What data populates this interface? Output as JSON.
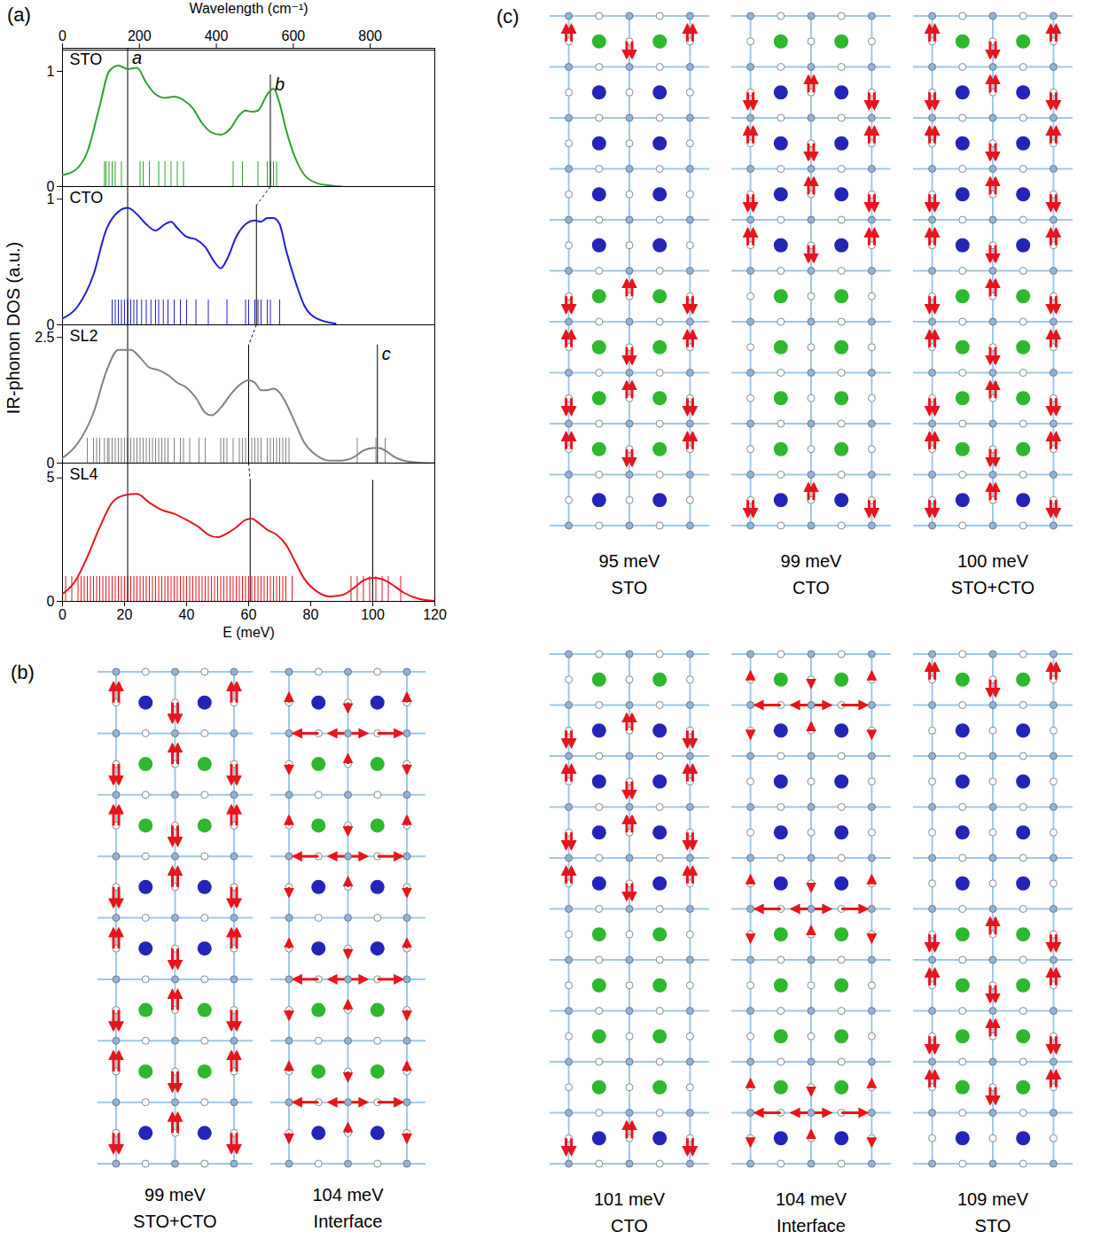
{
  "panel_a": {
    "label": "(a)",
    "y_label": "IR-phonon DOS (a.u.)"
  },
  "chart_data": [
    {
      "type": "line",
      "title": "STO",
      "color": "#2ca02c",
      "xlim": [
        0,
        120
      ],
      "ylim": [
        0,
        1.2
      ],
      "yticks": [
        0,
        1
      ],
      "tick_labels": "y",
      "x2lim": [
        0,
        968
      ],
      "x2ticks": [
        0,
        200,
        400,
        600,
        800
      ],
      "x2_label": "Wavelength (cm⁻¹)",
      "x": [
        0,
        4,
        8,
        12,
        15,
        18,
        21,
        24,
        27,
        30,
        33,
        36,
        39,
        42,
        45,
        48,
        51,
        54,
        57,
        59,
        61,
        63,
        66,
        68,
        70,
        72,
        75,
        78,
        82,
        86,
        90
      ],
      "values": [
        0.1,
        0.14,
        0.3,
        0.7,
        1.0,
        1.05,
        1.02,
        1.03,
        0.9,
        0.8,
        0.77,
        0.78,
        0.75,
        0.68,
        0.55,
        0.47,
        0.45,
        0.5,
        0.62,
        0.66,
        0.65,
        0.66,
        0.8,
        0.85,
        0.72,
        0.5,
        0.25,
        0.1,
        0.03,
        0.01,
        0
      ],
      "sticks": [
        13.5,
        14,
        15,
        16,
        17,
        19,
        25,
        26,
        28,
        31,
        33,
        35,
        37,
        39,
        55,
        58,
        63,
        66,
        67,
        68,
        69
      ],
      "vlines": [
        {
          "x": 21,
          "y_top": 1.2,
          "label": "a"
        },
        {
          "x": 67,
          "y_top": 0.97,
          "label": "b"
        }
      ]
    },
    {
      "type": "line",
      "title": "CTO",
      "color": "#1f1fd0",
      "xlim": [
        0,
        120
      ],
      "ylim": [
        0,
        1.1
      ],
      "yticks": [
        0,
        1
      ],
      "tick_labels": "y",
      "x": [
        0,
        5,
        10,
        14,
        18,
        21,
        24,
        27,
        30,
        33,
        35,
        37,
        40,
        43,
        46,
        49,
        51,
        53,
        56,
        59,
        62,
        64,
        66,
        68,
        70,
        72,
        75,
        78,
        82,
        88
      ],
      "values": [
        0.05,
        0.15,
        0.4,
        0.75,
        0.9,
        0.93,
        0.88,
        0.8,
        0.75,
        0.8,
        0.82,
        0.77,
        0.7,
        0.68,
        0.62,
        0.5,
        0.45,
        0.52,
        0.7,
        0.8,
        0.83,
        0.82,
        0.85,
        0.85,
        0.8,
        0.6,
        0.35,
        0.15,
        0.05,
        0.01
      ],
      "sticks": [
        16,
        17,
        18,
        19,
        20,
        21,
        22,
        23,
        24,
        25.5,
        27,
        28.5,
        30,
        31,
        32.5,
        34,
        36,
        38,
        40,
        43,
        47,
        53,
        59,
        60,
        62,
        63,
        64,
        66,
        67,
        70
      ],
      "vlines": [
        {
          "x": 21,
          "y_top": 1.1
        },
        {
          "x": 62.5,
          "y_top": 0.95
        }
      ]
    },
    {
      "type": "line",
      "title": "SL2",
      "color": "#808080",
      "xlim": [
        0,
        120
      ],
      "ylim": [
        0,
        2.75
      ],
      "yticks": [
        0,
        2.5
      ],
      "tick_labels": "y",
      "x": [
        0,
        5,
        10,
        14,
        18,
        22,
        25,
        28,
        31,
        34,
        37,
        40,
        43,
        46,
        48,
        51,
        54,
        57,
        60,
        62,
        64,
        66,
        68,
        70,
        72,
        75,
        78,
        82,
        86,
        90,
        94,
        97,
        100,
        102,
        104,
        107,
        110,
        115,
        120
      ],
      "values": [
        0.1,
        0.4,
        1.0,
        1.8,
        2.25,
        2.25,
        2.1,
        1.9,
        1.85,
        1.75,
        1.6,
        1.5,
        1.3,
        1.0,
        0.95,
        1.1,
        1.35,
        1.55,
        1.65,
        1.6,
        1.45,
        1.45,
        1.48,
        1.4,
        1.2,
        0.8,
        0.4,
        0.15,
        0.05,
        0.05,
        0.12,
        0.25,
        0.3,
        0.3,
        0.25,
        0.12,
        0.05,
        0.01,
        0
      ],
      "sticks": [
        8,
        10,
        11,
        12,
        13.5,
        14.5,
        15,
        16,
        17,
        18,
        19,
        20,
        21,
        22,
        23,
        24,
        25,
        26,
        27,
        28,
        29,
        30,
        31,
        32,
        33,
        34,
        36,
        38,
        39,
        41,
        44,
        46,
        51,
        52,
        53,
        55,
        57,
        58,
        59,
        60,
        61,
        62,
        63,
        64,
        66,
        67,
        68,
        69,
        70,
        71,
        72,
        73,
        95,
        101,
        104
      ],
      "vlines": [
        {
          "x": 21,
          "y_top": 2.75
        },
        {
          "x": 60,
          "y_top": 2.35
        },
        {
          "x": 101.5,
          "y_top": 2.35,
          "label": "c"
        }
      ]
    },
    {
      "type": "line",
      "title": "SL4",
      "color": "#e8141c",
      "xlim": [
        0,
        120
      ],
      "ylim": [
        0,
        5.6
      ],
      "yticks": [
        0,
        5
      ],
      "xticks": [
        0,
        20,
        40,
        60,
        80,
        100,
        120
      ],
      "x_label": "E (meV)",
      "x": [
        0,
        4,
        8,
        12,
        16,
        20,
        24,
        28,
        32,
        36,
        40,
        44,
        47,
        50,
        53,
        56,
        59,
        61,
        63,
        66,
        69,
        72,
        75,
        78,
        82,
        86,
        90,
        94,
        97,
        100,
        103,
        106,
        110,
        115,
        120
      ],
      "values": [
        0.3,
        0.8,
        1.8,
        3.0,
        4.0,
        4.3,
        4.35,
        4.0,
        3.7,
        3.55,
        3.3,
        3.0,
        2.7,
        2.6,
        2.75,
        3.0,
        3.3,
        3.35,
        3.2,
        2.9,
        2.7,
        2.3,
        1.6,
        0.9,
        0.4,
        0.2,
        0.25,
        0.55,
        0.85,
        0.95,
        0.9,
        0.7,
        0.35,
        0.1,
        0.02
      ],
      "sticks": [
        1,
        3,
        5,
        6,
        7,
        8,
        9,
        10,
        11,
        12,
        13,
        14,
        15,
        16,
        17,
        18,
        19,
        20,
        21,
        22,
        23,
        24,
        25,
        26,
        27,
        28,
        29,
        30,
        31,
        32,
        33,
        34,
        35,
        36,
        37,
        38,
        39,
        40,
        41,
        42,
        43,
        44,
        45,
        46,
        47,
        48,
        49,
        50,
        51,
        52,
        53,
        54,
        55,
        56,
        57,
        58,
        59,
        60,
        61,
        62,
        63,
        64,
        65,
        66,
        67,
        68,
        69,
        70,
        71,
        72,
        74,
        93,
        95,
        97,
        99,
        101,
        103,
        105,
        109
      ],
      "vlines": [
        {
          "x": 21,
          "y_top": 5.6
        },
        {
          "x": 60.5,
          "y_top": 4.9
        },
        {
          "x": 100,
          "y_top": 4.9
        }
      ]
    }
  ],
  "diagrams": {
    "b": {
      "label": "(b)",
      "modes": [
        {
          "energy": "99 meV",
          "site": "STO+CTO"
        },
        {
          "energy": "104 meV",
          "site": "Interface"
        }
      ]
    },
    "c": {
      "label": "(c)",
      "modes": [
        {
          "energy": "95 meV",
          "site": "STO"
        },
        {
          "energy": "99 meV",
          "site": "CTO"
        },
        {
          "energy": "100 meV",
          "site": "STO+CTO"
        },
        {
          "energy": "101 meV",
          "site": "CTO"
        },
        {
          "energy": "104 meV",
          "site": "Interface"
        },
        {
          "energy": "109 meV",
          "site": "STO"
        }
      ]
    }
  }
}
